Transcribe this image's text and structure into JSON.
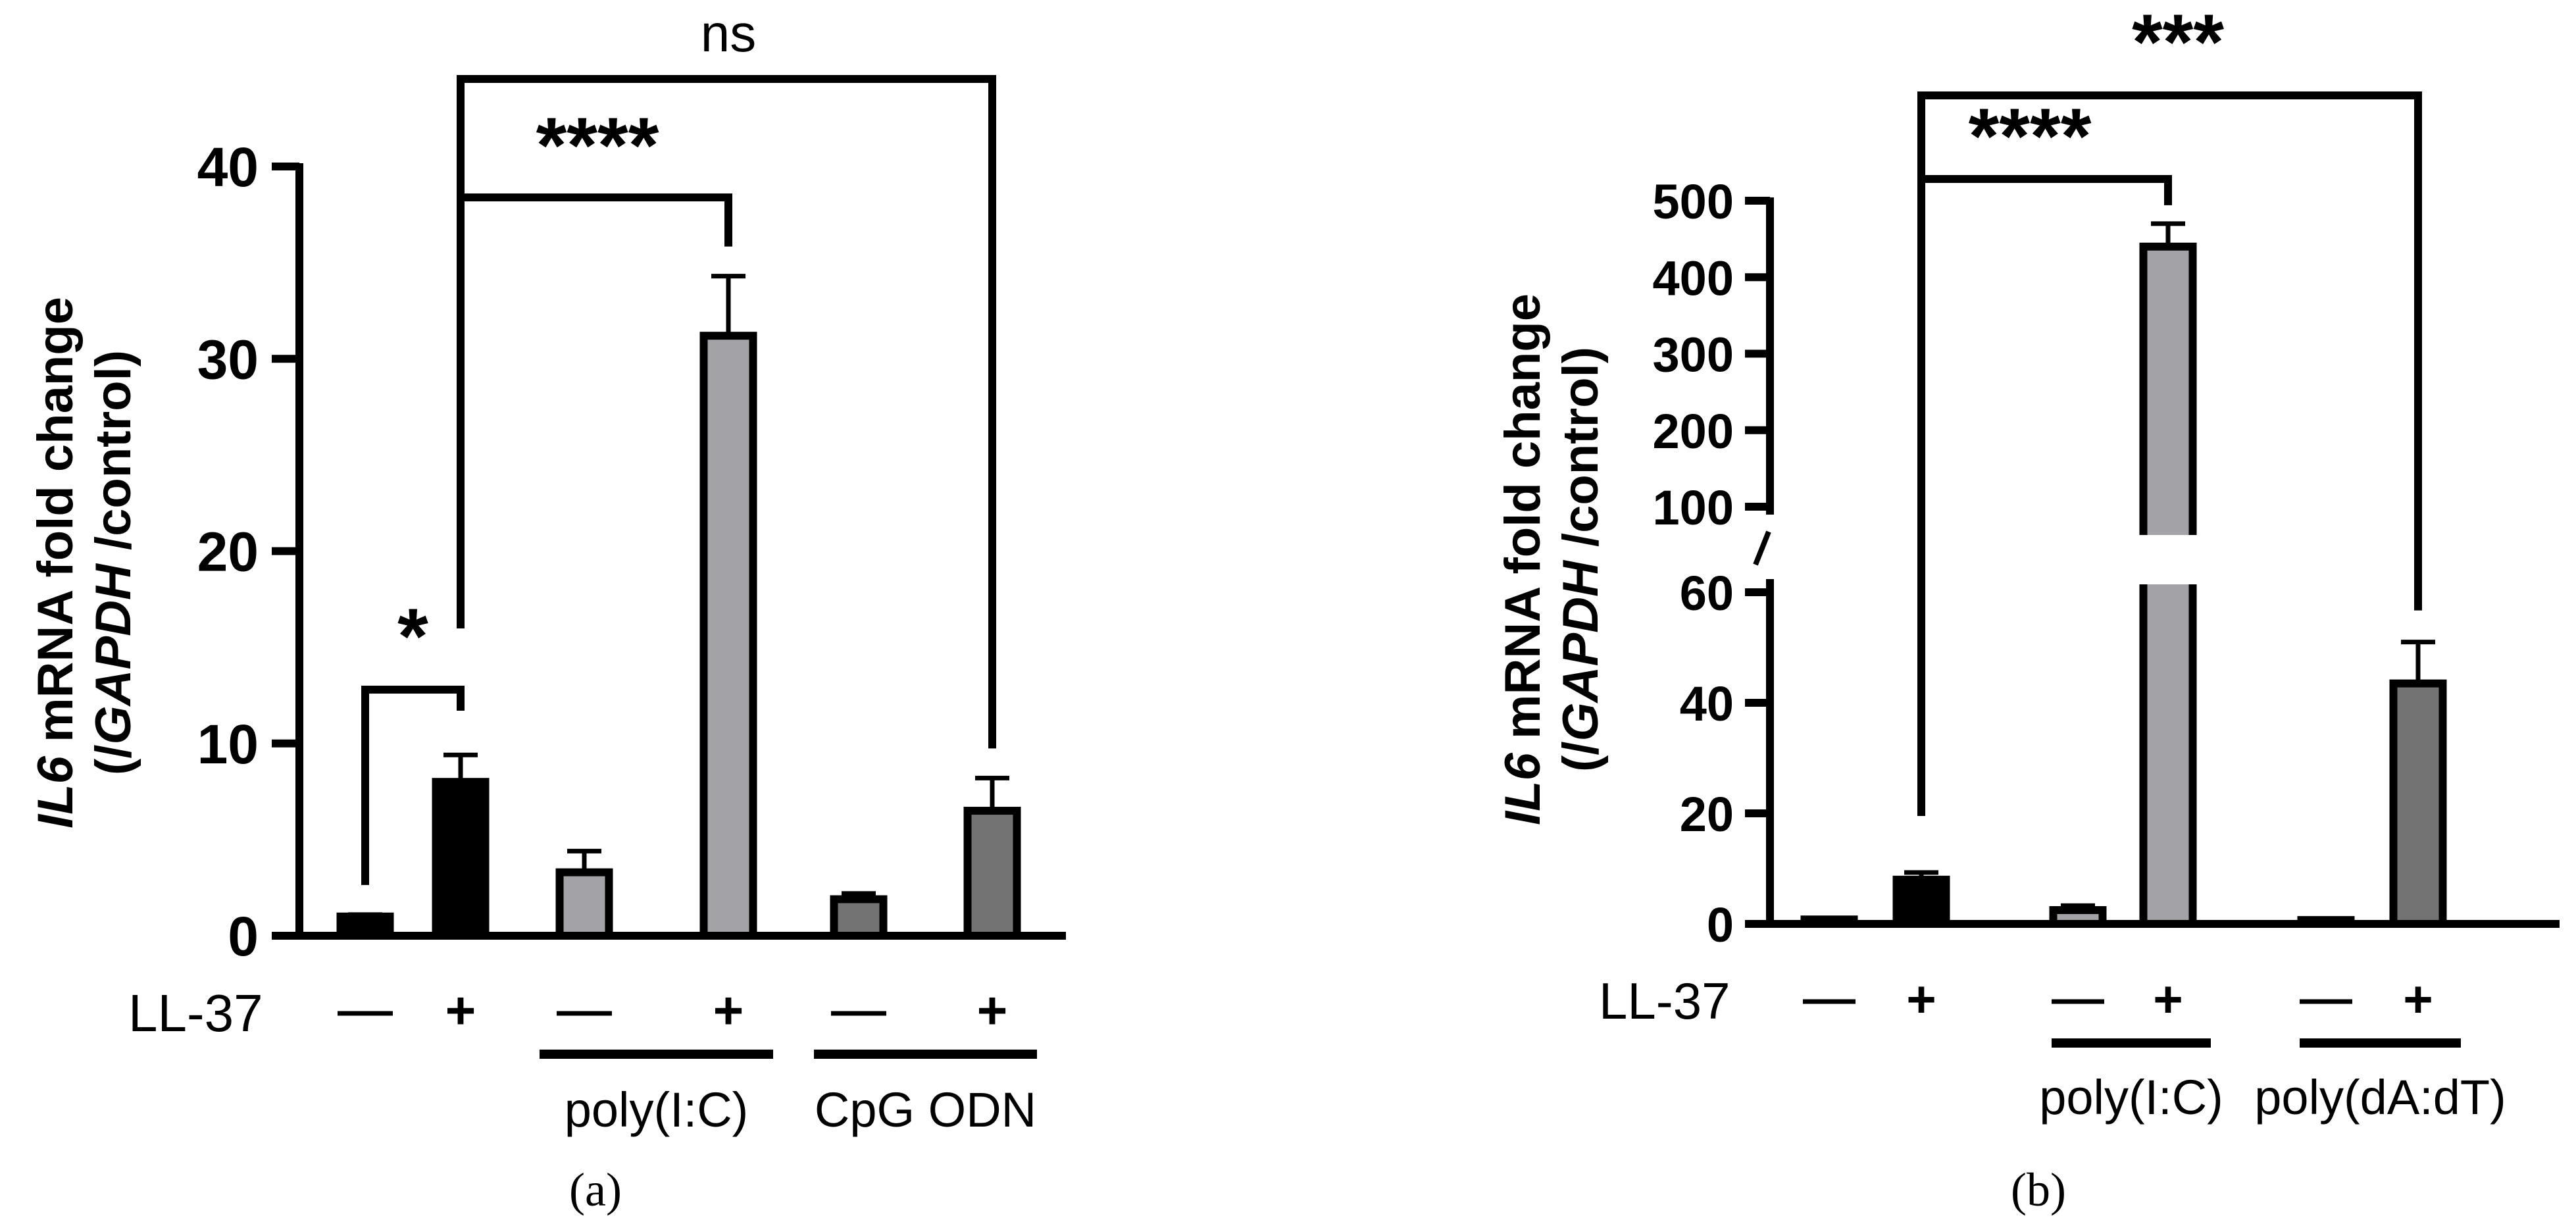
{
  "chart_data": [
    {
      "type": "bar",
      "panel_label": "(a)",
      "ylabel_gene": "IL6",
      "ylabel_rest": " mRNA fold change",
      "ylabel_line2_open": "(/",
      "ylabel_line2_gapdh": "GAPDH",
      "ylabel_line2_close": " /control)",
      "ylim": [
        0,
        40
      ],
      "yticks": [
        0,
        10,
        20,
        30,
        40
      ],
      "row_label": "LL-37",
      "categories": [
        "—",
        "+",
        "—",
        "+",
        "—",
        "+"
      ],
      "values": [
        1.0,
        8.0,
        3.3,
        31.2,
        1.9,
        6.5
      ],
      "errors": [
        0.1,
        1.4,
        1.1,
        3.1,
        0.3,
        1.7
      ],
      "colors": [
        "#000000",
        "#000000",
        "#a2a2a7",
        "#a2a2a7",
        "#737373",
        "#737373"
      ],
      "groups": [
        {
          "label": "poly(I:C)",
          "from": 2,
          "to": 3
        },
        {
          "label": "CpG ODN",
          "from": 4,
          "to": 5
        }
      ],
      "significance": [
        {
          "from": 0,
          "to": 1,
          "label": "*"
        },
        {
          "from": 1,
          "to": 3,
          "label": "****"
        },
        {
          "from": 1,
          "to": 5,
          "label": "ns"
        }
      ]
    },
    {
      "type": "bar",
      "panel_label": "(b)",
      "ylabel_gene": "IL6",
      "ylabel_rest": " mRNA fold change",
      "ylabel_line2_open": "(/",
      "ylabel_line2_gapdh": "GAPDH",
      "ylabel_line2_close": " /control)",
      "ylim": [
        0,
        500
      ],
      "axis_break": [
        60,
        100
      ],
      "yticks_lower": [
        0,
        20,
        40,
        60
      ],
      "yticks_upper": [
        100,
        200,
        300,
        400,
        500
      ],
      "row_label": "LL-37",
      "categories": [
        "—",
        "+",
        "—",
        "+",
        "—",
        "+"
      ],
      "values": [
        0.8,
        8.0,
        2.5,
        440,
        0.7,
        43.5
      ],
      "errors": [
        0.2,
        1.3,
        0.8,
        30,
        0.2,
        7.5
      ],
      "colors": [
        "#000000",
        "#000000",
        "#a2a2a7",
        "#a2a2a7",
        "#737373",
        "#737373"
      ],
      "groups": [
        {
          "label": "poly(I:C)",
          "from": 2,
          "to": 3
        },
        {
          "label": "poly(dA:dT)",
          "from": 4,
          "to": 5
        }
      ],
      "significance": [
        {
          "from": 1,
          "to": 3,
          "label": "****"
        },
        {
          "from": 1,
          "to": 5,
          "label": "***"
        }
      ]
    }
  ]
}
